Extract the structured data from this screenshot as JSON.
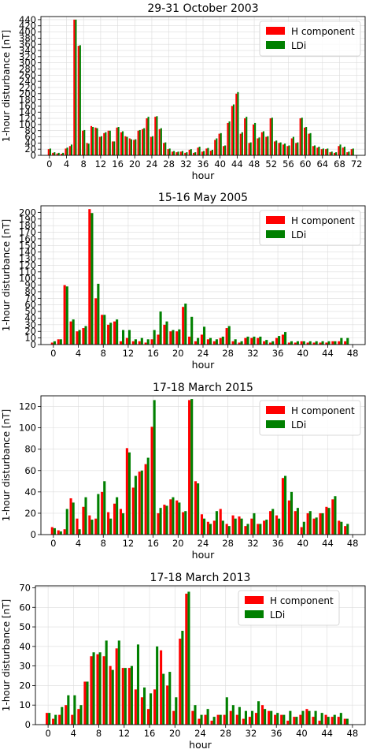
{
  "chart_data": [
    {
      "type": "bar",
      "title": "29-31 October 2003",
      "xlabel": "hour",
      "ylabel": "1-hour disturbance [nT]",
      "xlim": [
        -2,
        74
      ],
      "ylim": [
        0,
        450
      ],
      "xticks": [
        0,
        4,
        8,
        12,
        16,
        20,
        24,
        28,
        32,
        36,
        40,
        44,
        48,
        52,
        56,
        60,
        64,
        68,
        72
      ],
      "yticks": [
        0,
        20,
        40,
        60,
        80,
        100,
        120,
        140,
        160,
        180,
        200,
        220,
        240,
        260,
        280,
        300,
        320,
        340,
        360,
        380,
        400,
        420,
        440
      ],
      "grid": true,
      "legend_position": "top-right",
      "x": [
        0,
        1,
        2,
        3,
        4,
        5,
        6,
        7,
        8,
        9,
        10,
        11,
        12,
        13,
        14,
        15,
        16,
        17,
        18,
        19,
        20,
        21,
        22,
        23,
        24,
        25,
        26,
        27,
        28,
        29,
        30,
        31,
        32,
        33,
        34,
        35,
        36,
        37,
        38,
        39,
        40,
        41,
        42,
        43,
        44,
        45,
        46,
        47,
        48,
        49,
        50,
        51,
        52,
        53,
        54,
        55,
        56,
        57,
        58,
        59,
        60,
        61,
        62,
        63,
        64,
        65,
        66,
        67,
        68,
        69,
        70,
        71
      ],
      "series": [
        {
          "name": "H component",
          "color": "#ff0000",
          "values": [
            20,
            8,
            6,
            5,
            22,
            30,
            440,
            355,
            80,
            40,
            95,
            90,
            60,
            72,
            80,
            45,
            90,
            75,
            62,
            55,
            50,
            80,
            85,
            120,
            60,
            125,
            85,
            40,
            20,
            12,
            10,
            12,
            8,
            18,
            8,
            25,
            12,
            22,
            15,
            50,
            70,
            30,
            105,
            160,
            200,
            70,
            120,
            40,
            100,
            55,
            75,
            60,
            120,
            45,
            40,
            35,
            30,
            55,
            40,
            120,
            90,
            70,
            30,
            25,
            20,
            20,
            10,
            8,
            30,
            25,
            10,
            20
          ]
        },
        {
          "name": "LDi",
          "color": "#008000",
          "values": [
            22,
            10,
            8,
            8,
            25,
            35,
            440,
            357,
            82,
            38,
            92,
            88,
            62,
            75,
            80,
            45,
            92,
            78,
            60,
            52,
            52,
            82,
            88,
            125,
            62,
            127,
            88,
            42,
            22,
            14,
            12,
            14,
            10,
            20,
            10,
            28,
            14,
            24,
            18,
            55,
            72,
            32,
            110,
            165,
            205,
            75,
            125,
            42,
            105,
            58,
            78,
            62,
            122,
            48,
            42,
            38,
            32,
            60,
            42,
            122,
            92,
            72,
            32,
            28,
            22,
            22,
            12,
            10,
            35,
            28,
            12,
            22
          ]
        }
      ]
    },
    {
      "type": "bar",
      "title": "15-16 May 2005",
      "xlabel": "hour",
      "ylabel": "1-hour disturbance [nT]",
      "xlim": [
        -2,
        50
      ],
      "ylim": [
        0,
        210
      ],
      "xticks": [
        0,
        4,
        8,
        12,
        16,
        20,
        24,
        28,
        32,
        36,
        40,
        44,
        48
      ],
      "yticks": [
        0,
        10,
        20,
        30,
        40,
        50,
        60,
        70,
        80,
        90,
        100,
        110,
        120,
        130,
        140,
        150,
        160,
        170,
        180,
        190,
        200
      ],
      "grid": true,
      "legend_position": "top-right",
      "x": [
        0,
        1,
        2,
        3,
        4,
        5,
        6,
        7,
        8,
        9,
        10,
        11,
        12,
        13,
        14,
        15,
        16,
        17,
        18,
        19,
        20,
        21,
        22,
        23,
        24,
        25,
        26,
        27,
        28,
        29,
        30,
        31,
        32,
        33,
        34,
        35,
        36,
        37,
        38,
        39,
        40,
        41,
        42,
        43,
        44,
        45,
        46,
        47
      ],
      "series": [
        {
          "name": "H component",
          "color": "#ff0000",
          "values": [
            3,
            8,
            90,
            35,
            20,
            25,
            205,
            70,
            45,
            30,
            35,
            5,
            10,
            5,
            5,
            3,
            8,
            15,
            30,
            20,
            20,
            57,
            12,
            5,
            15,
            8,
            5,
            10,
            25,
            5,
            3,
            10,
            10,
            10,
            5,
            3,
            10,
            15,
            3,
            3,
            5,
            3,
            3,
            3,
            3,
            5,
            5,
            5
          ]
        },
        {
          "name": "LDi",
          "color": "#008000",
          "values": [
            5,
            8,
            88,
            38,
            22,
            28,
            199,
            92,
            45,
            33,
            38,
            22,
            22,
            8,
            10,
            8,
            22,
            50,
            35,
            22,
            23,
            62,
            42,
            10,
            27,
            10,
            8,
            12,
            28,
            8,
            5,
            12,
            12,
            12,
            7,
            5,
            13,
            19,
            5,
            5,
            5,
            5,
            5,
            5,
            5,
            5,
            10,
            10
          ]
        }
      ]
    },
    {
      "type": "bar",
      "title": "17-18 March 2015",
      "xlabel": "hour",
      "ylabel": "1-hour disturbance [nT]",
      "xlim": [
        -2,
        50
      ],
      "ylim": [
        0,
        130
      ],
      "xticks": [
        0,
        4,
        8,
        12,
        16,
        20,
        24,
        28,
        32,
        36,
        40,
        44,
        48
      ],
      "yticks": [
        0,
        20,
        40,
        60,
        80,
        100,
        120
      ],
      "grid": true,
      "legend_position": "top-right",
      "x": [
        0,
        1,
        2,
        3,
        4,
        5,
        6,
        7,
        8,
        9,
        10,
        11,
        12,
        13,
        14,
        15,
        16,
        17,
        18,
        19,
        20,
        21,
        22,
        23,
        24,
        25,
        26,
        27,
        28,
        29,
        30,
        31,
        32,
        33,
        34,
        35,
        36,
        37,
        38,
        39,
        40,
        41,
        42,
        43,
        44,
        45,
        46,
        47
      ],
      "series": [
        {
          "name": "H component",
          "color": "#ff0000",
          "values": [
            7,
            4,
            5,
            34,
            15,
            26,
            18,
            15,
            40,
            21,
            29,
            24,
            81,
            44,
            59,
            66,
            101,
            20,
            28,
            33,
            32,
            21,
            126,
            50,
            19,
            12,
            13,
            24,
            10,
            18,
            17,
            8,
            15,
            10,
            13,
            22,
            18,
            53,
            32,
            22,
            7,
            20,
            15,
            20,
            26,
            33,
            13,
            8
          ]
        },
        {
          "name": "LDi",
          "color": "#008000",
          "values": [
            6,
            3,
            24,
            30,
            5,
            35,
            14,
            38,
            50,
            15,
            35,
            20,
            77,
            55,
            60,
            72,
            126,
            25,
            27,
            35,
            30,
            22,
            127,
            48,
            15,
            10,
            22,
            13,
            8,
            15,
            15,
            10,
            20,
            10,
            14,
            24,
            15,
            55,
            40,
            25,
            12,
            22,
            16,
            20,
            25,
            36,
            12,
            10
          ]
        }
      ]
    },
    {
      "type": "bar",
      "title": "17-18 March 2013",
      "xlabel": "hour",
      "ylabel": "1-hour disturbance [nT]",
      "xlim": [
        -2,
        50
      ],
      "ylim": [
        0,
        71
      ],
      "xticks": [
        0,
        4,
        8,
        12,
        16,
        20,
        24,
        28,
        32,
        36,
        40,
        44,
        48
      ],
      "yticks": [
        0,
        10,
        20,
        30,
        40,
        50,
        60,
        70
      ],
      "grid": true,
      "legend_position": "top-left",
      "x": [
        0,
        1,
        2,
        3,
        4,
        5,
        6,
        7,
        8,
        9,
        10,
        11,
        12,
        13,
        14,
        15,
        16,
        17,
        18,
        19,
        20,
        21,
        22,
        23,
        24,
        25,
        26,
        27,
        28,
        29,
        30,
        31,
        32,
        33,
        34,
        35,
        36,
        37,
        38,
        39,
        40,
        41,
        42,
        43,
        44,
        45,
        46,
        47
      ],
      "series": [
        {
          "name": "H component",
          "color": "#ff0000",
          "values": [
            6,
            3,
            5,
            10,
            5,
            8,
            22,
            35,
            36,
            35,
            30,
            39,
            29,
            29,
            18,
            14,
            8,
            18,
            38,
            20,
            7,
            44,
            67,
            7,
            3,
            5,
            2,
            5,
            5,
            7,
            5,
            3,
            4,
            6,
            10,
            7,
            5,
            5,
            2,
            4,
            5,
            8,
            4,
            2,
            5,
            4,
            4,
            3
          ]
        },
        {
          "name": "LDi",
          "color": "#008000",
          "values": [
            6,
            5,
            9,
            15,
            15,
            10,
            22,
            37,
            37,
            43,
            28,
            43,
            29,
            30,
            41,
            19,
            16,
            40,
            26,
            27,
            14,
            48,
            68,
            10,
            5,
            8,
            4,
            5,
            14,
            10,
            9,
            7,
            7,
            12,
            8,
            7,
            6,
            5,
            7,
            4,
            7,
            7,
            7,
            6,
            4,
            5,
            6,
            3
          ]
        }
      ]
    }
  ]
}
